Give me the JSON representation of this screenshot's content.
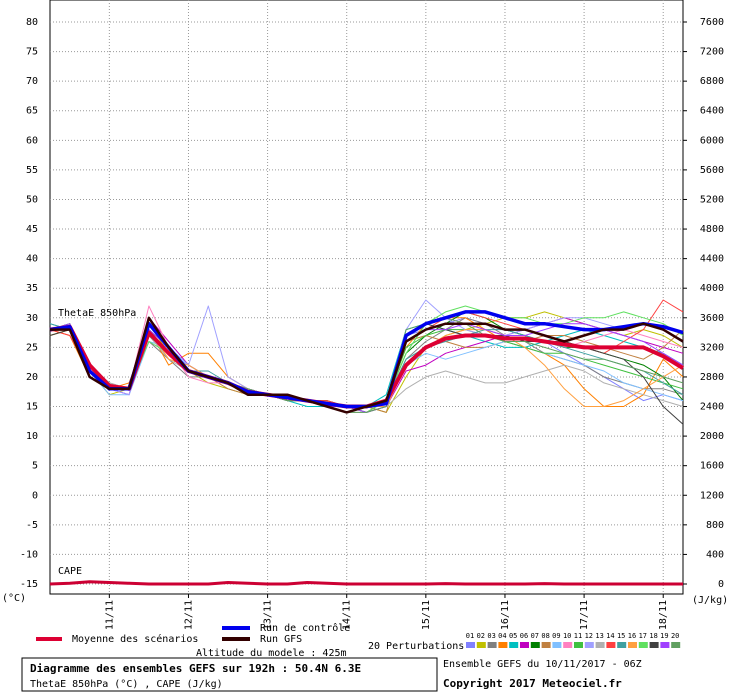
{
  "chart_data": {
    "type": "line",
    "title": "Diagramme des ensembles GEFS sur 192h : 50.4N 6.3E",
    "subtitle": "ThetaE 850hPa (°C) , CAPE (J/kg)",
    "altitude": "Altitude du modele : 425m",
    "run_info": "Ensemble GEFS du 10/11/2017 - 06Z",
    "copyright": "Copyright 2017 Meteociel.fr",
    "y_label": "(°C)",
    "y2_label": "(J/kg)",
    "annotations": [
      "ThetaE 850hPa"
    ],
    "perturbations_label": "20 Perturbations",
    "x": [
      0,
      6,
      12,
      18,
      24,
      30,
      36,
      42,
      48,
      54,
      60,
      66,
      72,
      78,
      84,
      90,
      96,
      102,
      108,
      114,
      120,
      126,
      132,
      138,
      144,
      150,
      156,
      162,
      168,
      174,
      180,
      186,
      192
    ],
    "xlim": [
      0,
      192
    ],
    "xticks": [
      {
        "value": 18,
        "label": "11/11"
      },
      {
        "value": 42,
        "label": "12/11"
      },
      {
        "value": 66,
        "label": "13/11"
      },
      {
        "value": 90,
        "label": "14/11"
      },
      {
        "value": 114,
        "label": "15/11"
      },
      {
        "value": 138,
        "label": "16/11"
      },
      {
        "value": 162,
        "label": "17/11"
      },
      {
        "value": 186,
        "label": "18/11"
      }
    ],
    "ylim": [
      -15,
      80
    ],
    "yticks": [
      -15,
      -10,
      -5,
      0,
      5,
      10,
      15,
      20,
      25,
      30,
      35,
      40,
      45,
      50,
      55,
      60,
      65,
      70,
      75,
      80
    ],
    "y2lim": [
      0,
      7600
    ],
    "y2ticks": [
      0,
      400,
      800,
      1200,
      1600,
      2000,
      2400,
      2800,
      3200,
      3600,
      4000,
      4400,
      4800,
      5200,
      5600,
      6000,
      6400,
      6800,
      7200,
      7600
    ],
    "grid": true,
    "perturbations": [
      {
        "name": "01",
        "color": "#8080ff",
        "values": [
          28,
          29,
          20,
          18,
          17,
          27,
          25,
          22,
          20,
          19,
          18,
          17,
          17,
          16,
          15,
          15,
          14,
          16,
          27,
          28,
          29,
          30,
          29,
          28,
          27,
          26,
          24,
          22,
          20,
          18,
          16,
          17,
          16
        ]
      },
      {
        "name": "02",
        "color": "#c0c000",
        "values": [
          27,
          28,
          21,
          17,
          18,
          29,
          24,
          21,
          19,
          18,
          17,
          17,
          16,
          16,
          15,
          14,
          15,
          14,
          20,
          25,
          27,
          28,
          29,
          30,
          30,
          31,
          30,
          29,
          28,
          27,
          28,
          27,
          25
        ]
      },
      {
        "name": "03",
        "color": "#808080",
        "values": [
          28,
          28,
          22,
          19,
          18,
          26,
          23,
          20,
          20,
          19,
          18,
          17,
          17,
          16,
          16,
          15,
          15,
          16,
          23,
          26,
          28,
          30,
          29,
          27,
          26,
          24,
          23,
          22,
          20,
          19,
          18,
          18,
          17
        ]
      },
      {
        "name": "04",
        "color": "#ff8000",
        "values": [
          28,
          27,
          20,
          18,
          19,
          28,
          22,
          24,
          24,
          20,
          18,
          17,
          16,
          16,
          15,
          15,
          14,
          16,
          25,
          29,
          30,
          30,
          28,
          26,
          25,
          24,
          22,
          18,
          15,
          15,
          17,
          23,
          20
        ]
      },
      {
        "name": "05",
        "color": "#00c0c0",
        "values": [
          29,
          28,
          21,
          18,
          18,
          27,
          24,
          21,
          20,
          19,
          17,
          17,
          16,
          15,
          15,
          14,
          15,
          17,
          28,
          29,
          28,
          27,
          26,
          25,
          25,
          26,
          27,
          28,
          27,
          26,
          25,
          24,
          22
        ]
      },
      {
        "name": "06",
        "color": "#c000c0",
        "values": [
          28,
          28,
          21,
          18,
          17,
          30,
          26,
          22,
          20,
          19,
          18,
          17,
          17,
          16,
          15,
          15,
          14,
          15,
          21,
          22,
          24,
          25,
          26,
          27,
          28,
          29,
          30,
          29,
          28,
          27,
          26,
          25,
          24
        ]
      },
      {
        "name": "07",
        "color": "#008000",
        "values": [
          28,
          29,
          20,
          18,
          18,
          28,
          25,
          21,
          20,
          19,
          18,
          17,
          17,
          16,
          16,
          15,
          15,
          16,
          24,
          27,
          29,
          31,
          30,
          28,
          27,
          26,
          25,
          25,
          24,
          23,
          22,
          20,
          16
        ]
      },
      {
        "name": "08",
        "color": "#c08040",
        "values": [
          27,
          28,
          22,
          18,
          18,
          27,
          24,
          21,
          20,
          18,
          17,
          17,
          16,
          16,
          15,
          15,
          15,
          14,
          26,
          27,
          26,
          25,
          25,
          26,
          26,
          27,
          27,
          26,
          25,
          24,
          23,
          25,
          28
        ]
      },
      {
        "name": "09",
        "color": "#80c0ff",
        "values": [
          28,
          28,
          21,
          17,
          17,
          26,
          25,
          22,
          20,
          19,
          18,
          17,
          16,
          16,
          15,
          14,
          15,
          15,
          22,
          24,
          23,
          24,
          25,
          26,
          25,
          24,
          23,
          22,
          21,
          19,
          18,
          17,
          16
        ]
      },
      {
        "name": "10",
        "color": "#ff80c0",
        "values": [
          28,
          28,
          21,
          18,
          18,
          32,
          25,
          20,
          19,
          19,
          18,
          17,
          17,
          16,
          15,
          15,
          15,
          16,
          27,
          29,
          30,
          29,
          28,
          27,
          27,
          26,
          25,
          26,
          27,
          28,
          27,
          26,
          25
        ]
      },
      {
        "name": "11",
        "color": "#40c040",
        "values": [
          28,
          29,
          20,
          18,
          18,
          28,
          24,
          21,
          20,
          19,
          18,
          17,
          17,
          16,
          15,
          15,
          14,
          16,
          25,
          27,
          28,
          28,
          27,
          26,
          25,
          24,
          24,
          23,
          22,
          21,
          20,
          19,
          18
        ]
      },
      {
        "name": "12",
        "color": "#a0a0ff",
        "values": [
          28,
          28,
          21,
          18,
          17,
          27,
          24,
          22,
          32,
          20,
          18,
          17,
          16,
          16,
          15,
          15,
          15,
          16,
          28,
          33,
          30,
          28,
          27,
          27,
          28,
          29,
          30,
          30,
          29,
          28,
          29,
          28,
          26
        ]
      },
      {
        "name": "13",
        "color": "#b0b0b0",
        "values": [
          28,
          28,
          22,
          19,
          18,
          27,
          23,
          21,
          20,
          19,
          17,
          17,
          16,
          16,
          15,
          14,
          14,
          15,
          18,
          20,
          21,
          20,
          19,
          19,
          20,
          21,
          22,
          21,
          19,
          18,
          17,
          16,
          15
        ]
      },
      {
        "name": "14",
        "color": "#ff4040",
        "values": [
          28,
          27,
          21,
          18,
          18,
          28,
          24,
          21,
          20,
          19,
          18,
          17,
          17,
          16,
          16,
          15,
          15,
          16,
          26,
          28,
          30,
          31,
          30,
          29,
          28,
          27,
          26,
          25,
          24,
          26,
          28,
          33,
          31
        ]
      },
      {
        "name": "15",
        "color": "#40a0a0",
        "values": [
          29,
          28,
          20,
          18,
          18,
          27,
          24,
          21,
          21,
          19,
          18,
          17,
          16,
          16,
          15,
          15,
          15,
          16,
          23,
          25,
          26,
          27,
          28,
          28,
          27,
          26,
          25,
          24,
          23,
          22,
          21,
          19,
          17
        ]
      },
      {
        "name": "16",
        "color": "#ffa040",
        "values": [
          28,
          28,
          21,
          18,
          18,
          28,
          23,
          22,
          20,
          19,
          18,
          17,
          17,
          16,
          15,
          15,
          15,
          15,
          22,
          25,
          27,
          28,
          28,
          27,
          25,
          22,
          18,
          15,
          15,
          16,
          18,
          20,
          22
        ]
      },
      {
        "name": "17",
        "color": "#60e060",
        "values": [
          28,
          28,
          21,
          18,
          18,
          26,
          24,
          21,
          20,
          19,
          18,
          17,
          16,
          16,
          15,
          15,
          14,
          16,
          24,
          29,
          31,
          32,
          31,
          30,
          30,
          29,
          29,
          30,
          30,
          31,
          30,
          29,
          27
        ]
      },
      {
        "name": "18",
        "color": "#404040",
        "values": [
          27,
          28,
          22,
          18,
          18,
          27,
          24,
          21,
          20,
          19,
          17,
          17,
          16,
          16,
          15,
          15,
          15,
          16,
          27,
          29,
          28,
          27,
          27,
          27,
          26,
          26,
          26,
          25,
          24,
          23,
          20,
          15,
          12
        ]
      },
      {
        "name": "19",
        "color": "#a040ff",
        "values": [
          28,
          29,
          21,
          18,
          18,
          28,
          25,
          21,
          20,
          19,
          18,
          17,
          17,
          16,
          15,
          15,
          14,
          15,
          26,
          28,
          28,
          29,
          28,
          27,
          27,
          28,
          29,
          29,
          28,
          27,
          26,
          24,
          22
        ]
      },
      {
        "name": "20",
        "color": "#60a060",
        "values": [
          28,
          28,
          20,
          18,
          18,
          27,
          24,
          21,
          20,
          19,
          18,
          17,
          16,
          16,
          15,
          14,
          14,
          15,
          28,
          29,
          30,
          29,
          27,
          26,
          26,
          25,
          24,
          23,
          23,
          22,
          21,
          20,
          19
        ]
      }
    ],
    "series": [
      {
        "name": "Moyenne des scénarios",
        "color": "#dd0033",
        "values": [
          28,
          28.5,
          22,
          18.5,
          18,
          27.5,
          24,
          21,
          20,
          19,
          17.5,
          17,
          16.5,
          16,
          15.5,
          15,
          15,
          16,
          22,
          25,
          26.5,
          27,
          27,
          26.5,
          26.5,
          26,
          25.5,
          25,
          25,
          25,
          25,
          23.5,
          21.5
        ]
      },
      {
        "name": "Run de contrôle",
        "color": "#0000ee",
        "values": [
          28,
          28.5,
          21,
          18,
          18,
          29,
          25,
          21,
          20,
          19,
          17.5,
          17,
          16.5,
          16,
          15.5,
          15,
          15,
          15.5,
          27,
          29,
          30,
          31,
          31,
          30,
          29,
          29,
          28.5,
          28,
          28,
          28.5,
          29,
          28.5,
          27.5
        ]
      },
      {
        "name": "Run GFS",
        "color": "#330000",
        "values": [
          28,
          28,
          20,
          18,
          18,
          30,
          25,
          21,
          20,
          19,
          17,
          17,
          17,
          16,
          15,
          14,
          15,
          16,
          26,
          28,
          29,
          29,
          29,
          28,
          28,
          27,
          26,
          27,
          28,
          28,
          29,
          28,
          26
        ]
      },
      {
        "name": "CAPE",
        "color": "#cc0033",
        "axis": "y2",
        "values": [
          0,
          10,
          30,
          20,
          10,
          0,
          0,
          0,
          0,
          20,
          10,
          0,
          0,
          20,
          10,
          0,
          0,
          0,
          0,
          0,
          5,
          0,
          0,
          0,
          0,
          5,
          0,
          0,
          0,
          0,
          0,
          0,
          0
        ]
      }
    ]
  }
}
